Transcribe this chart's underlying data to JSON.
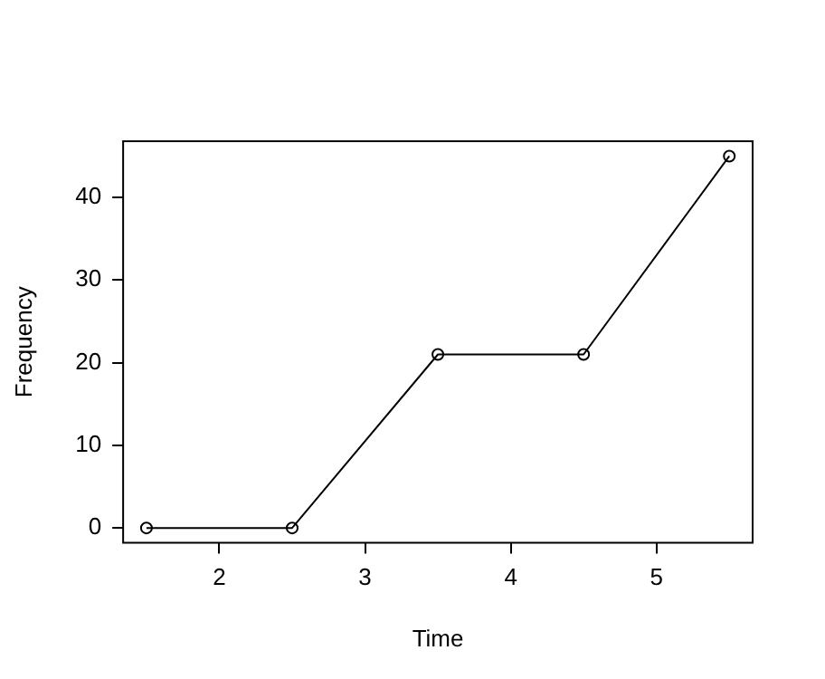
{
  "chart_data": {
    "type": "line",
    "xlabel": "Time",
    "ylabel": "Frequency",
    "x": [
      1.5,
      2.5,
      3.5,
      4.5,
      5.5
    ],
    "series": [
      {
        "color": "#000000",
        "values": [
          0,
          0,
          21,
          21,
          45
        ]
      }
    ],
    "xlim": [
      1.34,
      5.66
    ],
    "xticks": [
      2,
      3,
      4,
      5
    ],
    "ylim": [
      -1.8,
      46.8
    ],
    "yticks": [
      0,
      10,
      20,
      30,
      40
    ],
    "marker": "circle",
    "line_style": "solid"
  }
}
